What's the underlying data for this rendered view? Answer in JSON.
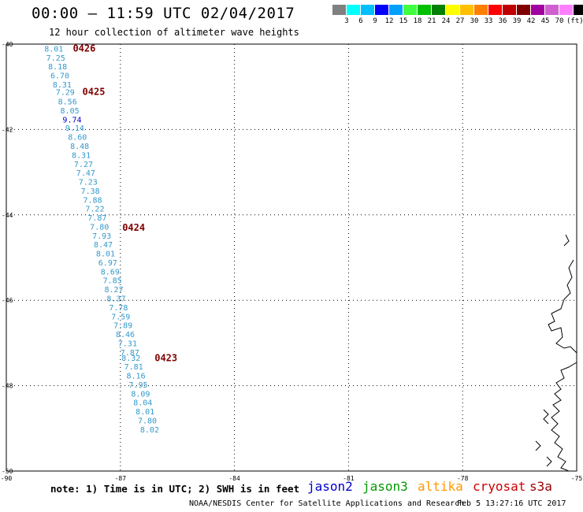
{
  "header": {
    "title": "00:00 – 11:59 UTC 02/04/2017",
    "subtitle": "12 hour collection of altimeter wave heights"
  },
  "legend": {
    "colors": [
      "#808080",
      "#00ffff",
      "#00bfff",
      "#0000ff",
      "#00a0ff",
      "#40ff40",
      "#00c000",
      "#008000",
      "#ffff00",
      "#ffc000",
      "#ff8000",
      "#ff0000",
      "#c00000",
      "#800000",
      "#a000a0",
      "#d060d0",
      "#ff80ff",
      "#000000"
    ],
    "labels": [
      "3",
      "6",
      "9",
      "12",
      "15",
      "18",
      "21",
      "24",
      "27",
      "30",
      "33",
      "36",
      "39",
      "42",
      "45",
      "70",
      "(ft)"
    ]
  },
  "map": {
    "lon_range": [
      -90,
      -75
    ],
    "lat_range": [
      -50,
      -40
    ],
    "lon_ticks": [
      "-90",
      "-87",
      "-84",
      "-81",
      "-78",
      "-75"
    ],
    "lat_ticks": [
      "-40",
      "-42",
      "-44",
      "-46",
      "-48",
      "-50"
    ],
    "track_color": "#3399cc",
    "highlight_color": "#0000cc",
    "time_color": "#800000",
    "track": [
      {
        "v": "8.01",
        "lat": -40.1,
        "lon": -89.0
      },
      {
        "v": "7.25",
        "lat": -40.31,
        "lon": -88.95
      },
      {
        "v": "8.18",
        "lat": -40.52,
        "lon": -88.9
      },
      {
        "v": "6.70",
        "lat": -40.73,
        "lon": -88.84
      },
      {
        "v": "8.31",
        "lat": -40.94,
        "lon": -88.78
      },
      {
        "v": "7.29",
        "lat": -41.12,
        "lon": -88.7
      },
      {
        "v": "8.56",
        "lat": -41.34,
        "lon": -88.64
      },
      {
        "v": "8.05",
        "lat": -41.55,
        "lon": -88.58
      },
      {
        "v": "9.74",
        "lat": -41.76,
        "lon": -88.52,
        "hl": true
      },
      {
        "v": "9.14",
        "lat": -41.96,
        "lon": -88.45
      },
      {
        "v": "8.60",
        "lat": -42.17,
        "lon": -88.38
      },
      {
        "v": "8.48",
        "lat": -42.38,
        "lon": -88.32
      },
      {
        "v": "8.31",
        "lat": -42.59,
        "lon": -88.28
      },
      {
        "v": "7.27",
        "lat": -42.8,
        "lon": -88.22
      },
      {
        "v": "7.47",
        "lat": -43.01,
        "lon": -88.16
      },
      {
        "v": "7.23",
        "lat": -43.22,
        "lon": -88.1
      },
      {
        "v": "7.38",
        "lat": -43.43,
        "lon": -88.04
      },
      {
        "v": "7.88",
        "lat": -43.64,
        "lon": -87.98
      },
      {
        "v": "7.22",
        "lat": -43.85,
        "lon": -87.92
      },
      {
        "v": "7.87",
        "lat": -44.06,
        "lon": -87.86
      },
      {
        "v": "7.80",
        "lat": -44.27,
        "lon": -87.8
      },
      {
        "v": "7.93",
        "lat": -44.48,
        "lon": -87.74
      },
      {
        "v": "8.47",
        "lat": -44.69,
        "lon": -87.7
      },
      {
        "v": "8.01",
        "lat": -44.9,
        "lon": -87.64
      },
      {
        "v": "6.97",
        "lat": -45.11,
        "lon": -87.58
      },
      {
        "v": "8.69",
        "lat": -45.32,
        "lon": -87.52
      },
      {
        "v": "7.85",
        "lat": -45.53,
        "lon": -87.46
      },
      {
        "v": "8.27",
        "lat": -45.74,
        "lon": -87.42
      },
      {
        "v": "8.37",
        "lat": -45.95,
        "lon": -87.36
      },
      {
        "v": "7.78",
        "lat": -46.16,
        "lon": -87.3
      },
      {
        "v": "7.59",
        "lat": -46.37,
        "lon": -87.24
      },
      {
        "v": "7.89",
        "lat": -46.58,
        "lon": -87.18
      },
      {
        "v": "8.46",
        "lat": -46.79,
        "lon": -87.12
      },
      {
        "v": "7.31",
        "lat": -47.0,
        "lon": -87.06
      },
      {
        "v": "7.87",
        "lat": -47.21,
        "lon": -87.0
      },
      {
        "v": "8.32",
        "lat": -47.34,
        "lon": -86.97
      },
      {
        "v": "7.81",
        "lat": -47.55,
        "lon": -86.9
      },
      {
        "v": "8.16",
        "lat": -47.76,
        "lon": -86.84
      },
      {
        "v": "7.95",
        "lat": -47.97,
        "lon": -86.78
      },
      {
        "v": "8.09",
        "lat": -48.18,
        "lon": -86.72
      },
      {
        "v": "8.04",
        "lat": -48.39,
        "lon": -86.66
      },
      {
        "v": "8.01",
        "lat": -48.6,
        "lon": -86.6
      },
      {
        "v": "7.80",
        "lat": -48.81,
        "lon": -86.54
      },
      {
        "v": "8.02",
        "lat": -49.02,
        "lon": -86.48
      }
    ],
    "times": [
      {
        "t": "0426",
        "lat": -40.1,
        "lon": -88.25
      },
      {
        "t": "0425",
        "lat": -41.12,
        "lon": -88.0
      },
      {
        "t": "0424",
        "lat": -44.3,
        "lon": -86.95
      },
      {
        "t": "0423",
        "lat": -47.35,
        "lon": -86.1
      }
    ]
  },
  "footer": {
    "note": "note: 1) Time is in UTC; 2) SWH is in feet",
    "satellites": [
      {
        "name": "jason2",
        "color": "#0000cc"
      },
      {
        "name": "jason3",
        "color": "#009900"
      },
      {
        "name": "altika",
        "color": "#ff9900"
      },
      {
        "name": "cryosat",
        "color": "#cc0000"
      },
      {
        "name": "s3a",
        "color": "#990000"
      }
    ],
    "credit": "NOAA/NESDIS Center for Satellite Applications and Research",
    "date": "Feb  5 13:27:16 UTC 2017"
  }
}
